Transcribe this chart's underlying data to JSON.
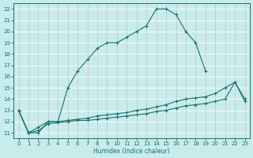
{
  "xlabel": "Humidex (Indice chaleur)",
  "bg_color": "#c8ecec",
  "line_color": "#1a7070",
  "grid_color": "#b0d8d8",
  "xlim": [
    -0.5,
    23.5
  ],
  "ylim": [
    10.5,
    22.5
  ],
  "xticks": [
    0,
    1,
    2,
    3,
    4,
    5,
    6,
    7,
    8,
    9,
    10,
    11,
    12,
    13,
    14,
    15,
    16,
    17,
    18,
    19,
    20,
    21,
    22,
    23
  ],
  "yticks": [
    11,
    12,
    13,
    14,
    15,
    16,
    17,
    18,
    19,
    20,
    21,
    22
  ],
  "main_x": [
    0,
    1,
    2,
    3,
    4,
    5,
    6,
    7,
    8,
    9,
    10,
    11,
    12,
    13,
    14,
    15,
    16,
    17,
    18,
    19
  ],
  "main_y": [
    13,
    11,
    11,
    12,
    12,
    15,
    16.5,
    17.5,
    18.5,
    19.0,
    19.0,
    19.5,
    20.0,
    20.5,
    22.0,
    22.0,
    21.5,
    20.0,
    19.0,
    16.5
  ],
  "mid_x": [
    0,
    1,
    2,
    3,
    4,
    5,
    6,
    7,
    8,
    9,
    10,
    11,
    12,
    13,
    14,
    15,
    16,
    17,
    18,
    19,
    20,
    21,
    22,
    23
  ],
  "mid_y": [
    13,
    11,
    11.5,
    12,
    12,
    12.1,
    12.2,
    12.3,
    12.5,
    12.6,
    12.7,
    12.8,
    13.0,
    13.1,
    13.3,
    13.5,
    13.8,
    14.0,
    14.1,
    14.2,
    14.5,
    15.0,
    15.5,
    14.0
  ],
  "low_x": [
    0,
    1,
    2,
    3,
    4,
    5,
    6,
    7,
    8,
    9,
    10,
    11,
    12,
    13,
    14,
    15,
    16,
    17,
    18,
    19,
    20,
    21,
    22,
    23
  ],
  "low_y": [
    13,
    11,
    11.2,
    11.8,
    11.9,
    12.0,
    12.1,
    12.1,
    12.2,
    12.3,
    12.4,
    12.5,
    12.6,
    12.7,
    12.9,
    13.0,
    13.2,
    13.4,
    13.5,
    13.6,
    13.8,
    14.0,
    15.5,
    13.8
  ]
}
